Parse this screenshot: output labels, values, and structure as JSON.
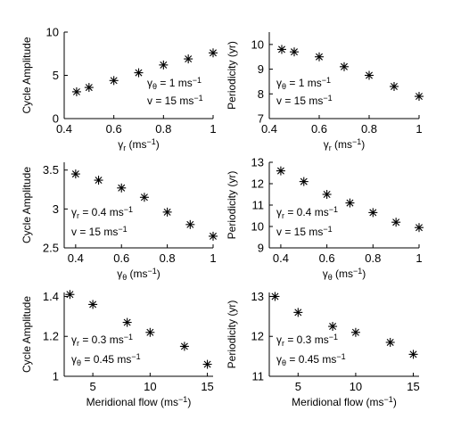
{
  "chart_data": [
    {
      "type": "scatter",
      "xlabel": "γr (ms−1)",
      "xlabel_main": "γ",
      "xlabel_sub": "r",
      "xlabel_rest": " (ms",
      "xlabel_unit_sup": "−1",
      "xlabel_close": ")",
      "ylabel": "Cycle Amplitude",
      "xlim": [
        0.4,
        1.0
      ],
      "ylim": [
        0,
        10
      ],
      "xticks": [
        0.4,
        0.6,
        0.8,
        1
      ],
      "xtick_labels": [
        "0.4",
        "0.6",
        "0.8",
        "1"
      ],
      "yticks": [
        0,
        5,
        10
      ],
      "ytick_labels": [
        "0",
        "5",
        "10"
      ],
      "x": [
        0.45,
        0.5,
        0.6,
        0.7,
        0.8,
        0.9,
        1.0
      ],
      "y": [
        3.1,
        3.6,
        4.4,
        5.3,
        6.2,
        6.9,
        7.6
      ],
      "annotations": [
        {
          "text": "γθ = 1 ms−1",
          "main": "γ",
          "sub": "θ",
          "mid": " = 1 ms",
          "sup": "−1"
        },
        {
          "text": "v = 15 ms−1",
          "main": "v",
          "sub": "",
          "mid": " = 15 ms",
          "sup": "−1"
        }
      ]
    },
    {
      "type": "scatter",
      "xlabel": "γr (ms−1)",
      "xlabel_main": "γ",
      "xlabel_sub": "r",
      "xlabel_rest": " (ms",
      "xlabel_unit_sup": "−1",
      "xlabel_close": ")",
      "ylabel": "Periodicity (yr)",
      "xlim": [
        0.4,
        1.0
      ],
      "ylim": [
        7,
        10.5
      ],
      "xticks": [
        0.4,
        0.6,
        0.8,
        1
      ],
      "xtick_labels": [
        "0.4",
        "0.6",
        "0.8",
        "1"
      ],
      "yticks": [
        7,
        8,
        9,
        10
      ],
      "ytick_labels": [
        "7",
        "8",
        "9",
        "10"
      ],
      "x": [
        0.45,
        0.5,
        0.6,
        0.7,
        0.8,
        0.9,
        1.0
      ],
      "y": [
        9.8,
        9.7,
        9.5,
        9.1,
        8.75,
        8.3,
        7.9
      ],
      "annotations": [
        {
          "text": "γθ = 1 ms−1",
          "main": "γ",
          "sub": "θ",
          "mid": " = 1 ms",
          "sup": "−1"
        },
        {
          "text": "v = 15 ms−1",
          "main": "v",
          "sub": "",
          "mid": " = 15 ms",
          "sup": "−1"
        }
      ]
    },
    {
      "type": "scatter",
      "xlabel": "γθ (ms−1)",
      "xlabel_main": "γ",
      "xlabel_sub": "θ",
      "xlabel_rest": " (ms",
      "xlabel_unit_sup": "−1",
      "xlabel_close": ")",
      "ylabel": "Cycle Amplitude",
      "xlim": [
        0.35,
        1.0
      ],
      "ylim": [
        2.5,
        3.6
      ],
      "xticks": [
        0.4,
        0.6,
        0.8,
        1
      ],
      "xtick_labels": [
        "0.4",
        "0.6",
        "0.8",
        "1"
      ],
      "yticks": [
        2.5,
        3,
        3.5
      ],
      "ytick_labels": [
        "2.5",
        "3",
        "3.5"
      ],
      "x": [
        0.4,
        0.5,
        0.6,
        0.7,
        0.8,
        0.9,
        1.0
      ],
      "y": [
        3.45,
        3.37,
        3.27,
        3.15,
        2.96,
        2.8,
        2.65
      ],
      "annotations": [
        {
          "text": "γr = 0.4 ms−1",
          "main": "γ",
          "sub": "r",
          "mid": " = 0.4 ms",
          "sup": "−1"
        },
        {
          "text": "v = 15 ms−1",
          "main": "v",
          "sub": "",
          "mid": " = 15 ms",
          "sup": "−1"
        }
      ]
    },
    {
      "type": "scatter",
      "xlabel": "γθ (ms−1)",
      "xlabel_main": "γ",
      "xlabel_sub": "θ",
      "xlabel_rest": " (ms",
      "xlabel_unit_sup": "−1",
      "xlabel_close": ")",
      "ylabel": "Periodicity (yr)",
      "xlim": [
        0.35,
        1.0
      ],
      "ylim": [
        9,
        13
      ],
      "xticks": [
        0.4,
        0.6,
        0.8,
        1
      ],
      "xtick_labels": [
        "0.4",
        "0.6",
        "0.8",
        "1"
      ],
      "yticks": [
        9,
        10,
        11,
        12,
        13
      ],
      "ytick_labels": [
        "9",
        "10",
        "11",
        "12",
        "13"
      ],
      "x": [
        0.4,
        0.5,
        0.6,
        0.7,
        0.8,
        0.9,
        1.0
      ],
      "y": [
        12.6,
        12.1,
        11.5,
        11.1,
        10.65,
        10.2,
        9.95
      ],
      "annotations": [
        {
          "text": "γr = 0.4 ms−1",
          "main": "γ",
          "sub": "r",
          "mid": " = 0.4 ms",
          "sup": "−1"
        },
        {
          "text": "v = 15 ms−1",
          "main": "v",
          "sub": "",
          "mid": " = 15 ms",
          "sup": "−1"
        }
      ]
    },
    {
      "type": "scatter",
      "xlabel": "Meridional flow (ms−1)",
      "xlabel_main": "Meridional flow",
      "xlabel_sub": "",
      "xlabel_rest": " (ms",
      "xlabel_unit_sup": "−1",
      "xlabel_close": ")",
      "ylabel": "Cycle Amplitude",
      "xlim": [
        2.5,
        15.5
      ],
      "ylim": [
        1.0,
        1.42
      ],
      "xticks": [
        5,
        10,
        15
      ],
      "xtick_labels": [
        "5",
        "10",
        "15"
      ],
      "yticks": [
        1,
        1.2,
        1.4
      ],
      "ytick_labels": [
        "1",
        "1.2",
        "1.4"
      ],
      "x": [
        3,
        5,
        8,
        10,
        13,
        15
      ],
      "y": [
        1.41,
        1.36,
        1.27,
        1.22,
        1.15,
        1.06
      ],
      "annotations": [
        {
          "text": "γr = 0.3 ms−1",
          "main": "γ",
          "sub": "r",
          "mid": " = 0.3 ms",
          "sup": "−1"
        },
        {
          "text": "γθ = 0.45 ms−1",
          "main": "γ",
          "sub": "θ",
          "mid": " = 0.45 ms",
          "sup": "−1"
        }
      ]
    },
    {
      "type": "scatter",
      "xlabel": "Meridional flow (ms−1)",
      "xlabel_main": "Meridional flow",
      "xlabel_sub": "",
      "xlabel_rest": " (ms",
      "xlabel_unit_sup": "−1",
      "xlabel_close": ")",
      "ylabel": "Periodicity (yr)",
      "xlim": [
        2.5,
        15.5
      ],
      "ylim": [
        11,
        13.1
      ],
      "xticks": [
        5,
        10,
        15
      ],
      "xtick_labels": [
        "5",
        "10",
        "15"
      ],
      "yticks": [
        11,
        12,
        13
      ],
      "ytick_labels": [
        "11",
        "12",
        "13"
      ],
      "x": [
        3,
        5,
        8,
        10,
        13,
        15
      ],
      "y": [
        13.0,
        12.6,
        12.25,
        12.1,
        11.85,
        11.55
      ],
      "annotations": [
        {
          "text": "γr = 0.3 ms−1",
          "main": "γ",
          "sub": "r",
          "mid": " = 0.3 ms",
          "sup": "−1"
        },
        {
          "text": "γθ = 0.45 ms−1",
          "main": "γ",
          "sub": "θ",
          "mid": " = 0.45 ms",
          "sup": "−1"
        }
      ]
    }
  ]
}
